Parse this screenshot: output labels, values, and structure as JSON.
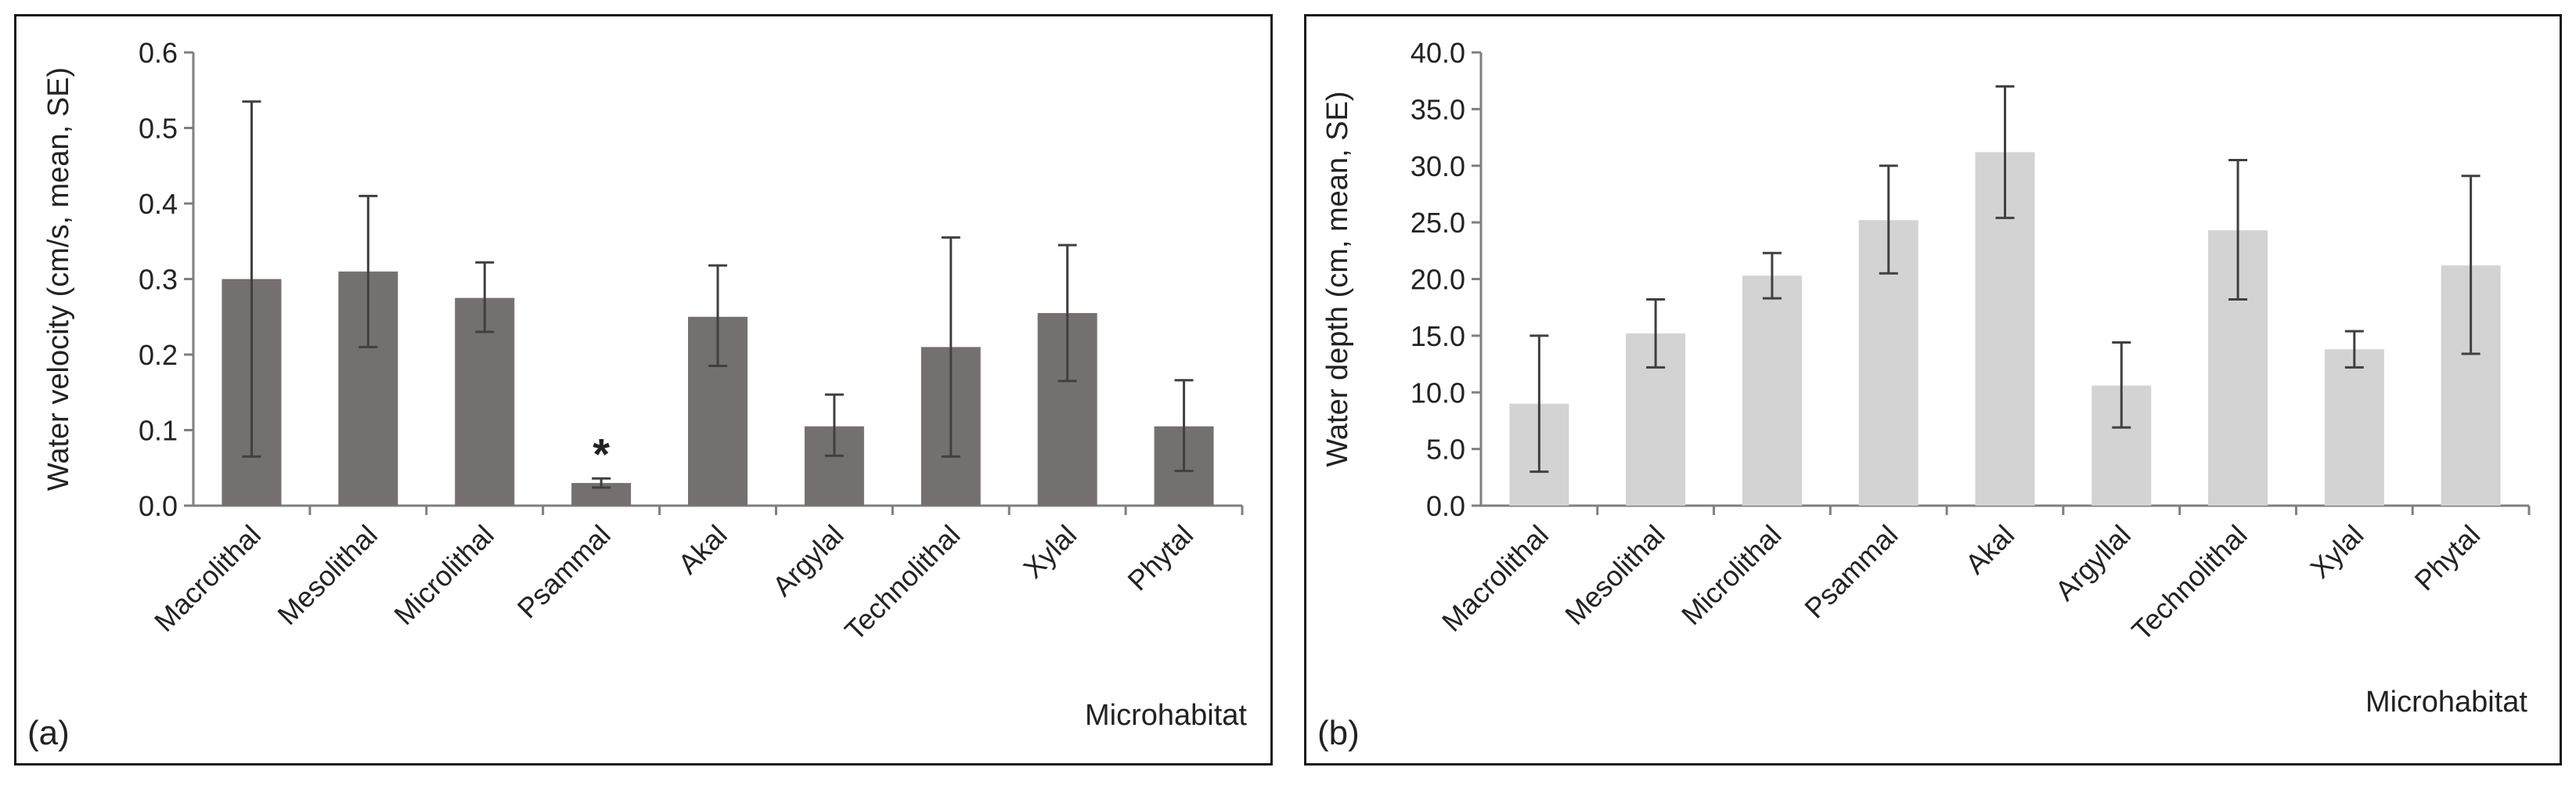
{
  "chart_data": [
    {
      "type": "bar",
      "panel_label": "(a)",
      "categories": [
        "Macrolithal",
        "Mesolithal",
        "Microlithal",
        "Psammal",
        "Akal",
        "Argylal",
        "Technolithal",
        "Xylal",
        "Phytal"
      ],
      "values": [
        0.3,
        0.31,
        0.275,
        0.03,
        0.25,
        0.105,
        0.21,
        0.255,
        0.105
      ],
      "error_upper": [
        0.535,
        0.41,
        0.322,
        0.036,
        0.318,
        0.147,
        0.355,
        0.345,
        0.166
      ],
      "error_lower": [
        0.065,
        0.21,
        0.23,
        0.024,
        0.185,
        0.066,
        0.065,
        0.165,
        0.046
      ],
      "annotations": [
        {
          "category": "Psammal",
          "text": "*"
        }
      ],
      "xlabel": "Microhabitat",
      "ylabel": "Water velocity (cm/s, mean, SE)",
      "ylim": [
        0,
        0.6
      ],
      "yticks": [
        0,
        0.1,
        0.2,
        0.3,
        0.4,
        0.5,
        0.6
      ],
      "ytick_labels": [
        "0.0",
        "0.1",
        "0.2",
        "0.3",
        "0.4",
        "0.5",
        "0.6"
      ],
      "bar_color": "#757070",
      "grid": false
    },
    {
      "type": "bar",
      "panel_label": "(b)",
      "categories": [
        "Macrolithal",
        "Mesolithal",
        "Microlithal",
        "Psammal",
        "Akal",
        "Argyllal",
        "Technolithal",
        "Xylal",
        "Phytal"
      ],
      "values": [
        9.0,
        15.2,
        20.3,
        25.2,
        31.2,
        10.6,
        24.3,
        13.8,
        21.2
      ],
      "error_upper": [
        15.0,
        18.2,
        22.3,
        30.0,
        37.0,
        14.4,
        30.5,
        15.4,
        29.1
      ],
      "error_lower": [
        3.0,
        12.2,
        18.3,
        20.5,
        25.4,
        6.9,
        18.2,
        12.2,
        13.4
      ],
      "annotations": [],
      "xlabel": "Microhabitat",
      "ylabel": "Water depth (cm, mean, SE)",
      "ylim": [
        0,
        40
      ],
      "yticks": [
        0,
        5,
        10,
        15,
        20,
        25,
        30,
        35,
        40
      ],
      "ytick_labels": [
        "0.0",
        "5.0",
        "10.0",
        "15.0",
        "20.0",
        "25.0",
        "30.0",
        "35.0",
        "40.0"
      ],
      "bar_color": "#d3d3d3",
      "grid": false
    }
  ]
}
